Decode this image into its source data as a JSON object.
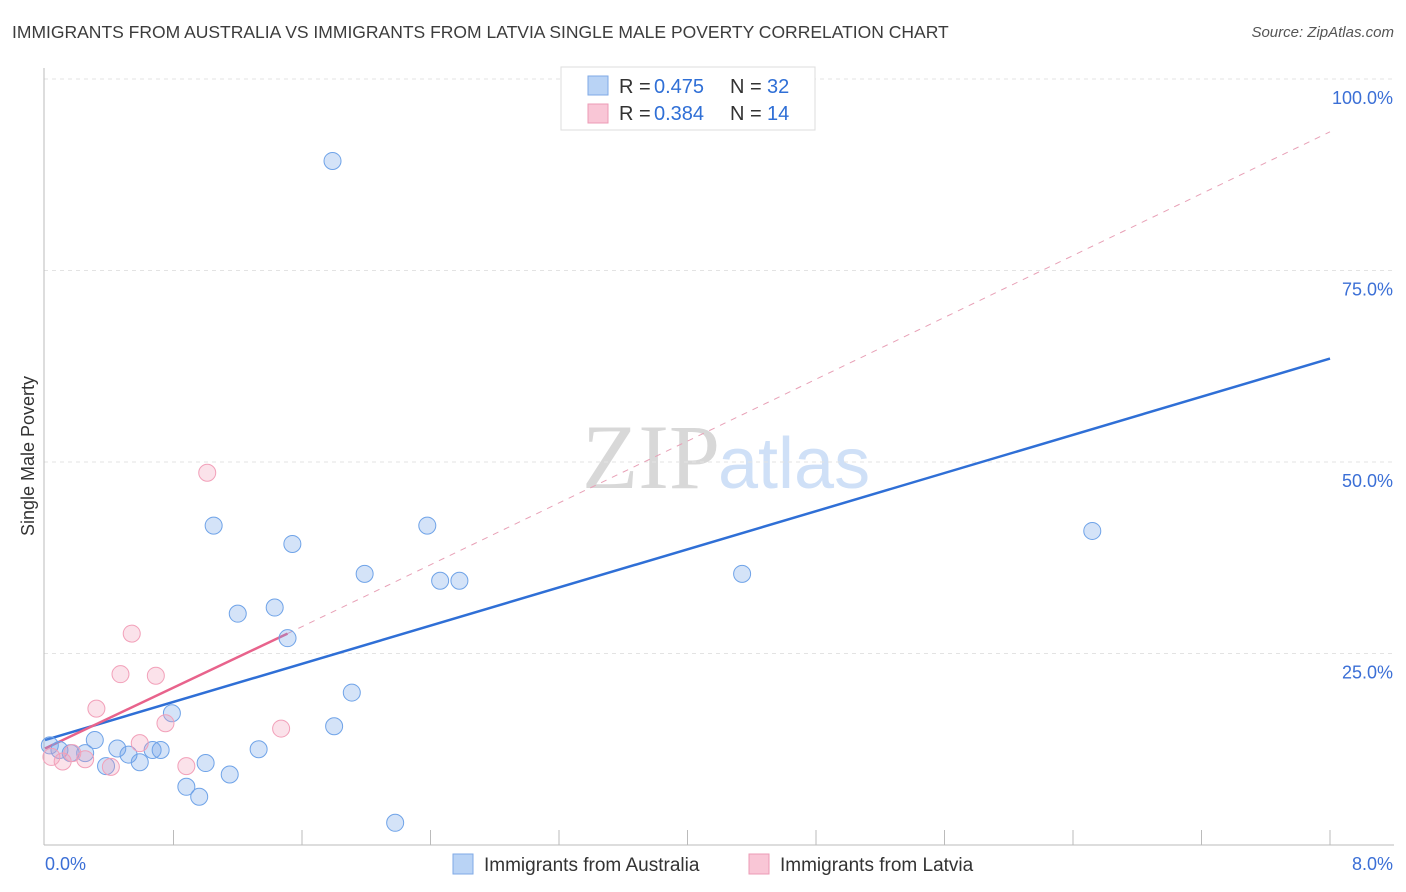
{
  "title": "IMMIGRANTS FROM AUSTRALIA VS IMMIGRANTS FROM LATVIA SINGLE MALE POVERTY CORRELATION CHART",
  "source": "Source: ZipAtlas.com",
  "watermark": "ZIPatlas",
  "colors": {
    "australia": "#6fa3e8",
    "latvia": "#f2a0b9",
    "australia_line": "#2f6fd6",
    "latvia_line": "#e8638c"
  },
  "legend": {
    "r_label": "R = ",
    "n_label": "N = ",
    "australia": {
      "r": "0.475",
      "n": "32"
    },
    "latvia": {
      "r": "0.384",
      "n": "14"
    }
  },
  "chart_data": {
    "type": "scatter",
    "title": "IMMIGRANTS FROM AUSTRALIA VS IMMIGRANTS FROM LATVIA SINGLE MALE POVERTY CORRELATION CHART",
    "xlabel": "",
    "ylabel": "Single Male Poverty",
    "xlim": [
      0,
      8
    ],
    "ylim": [
      0,
      100
    ],
    "x_tick_labels": [
      "0.0%",
      "8.0%"
    ],
    "y_tick_labels": [
      "100.0%",
      "75.0%",
      "50.0%",
      "25.0%"
    ],
    "y_ticks": [
      100,
      75,
      50,
      25
    ],
    "legend_position": "bottom",
    "series": [
      {
        "name": "Immigrants from Australia",
        "points": [
          [
            1.79,
            89.3
          ],
          [
            1.05,
            41.7
          ],
          [
            2.38,
            41.7
          ],
          [
            6.52,
            41.0
          ],
          [
            1.54,
            39.3
          ],
          [
            1.99,
            35.4
          ],
          [
            4.34,
            35.4
          ],
          [
            2.46,
            34.5
          ],
          [
            2.58,
            34.5
          ],
          [
            1.43,
            31.0
          ],
          [
            1.2,
            30.2
          ],
          [
            1.51,
            27.0
          ],
          [
            1.91,
            19.9
          ],
          [
            0.79,
            17.2
          ],
          [
            1.8,
            15.5
          ],
          [
            0.31,
            13.7
          ],
          [
            0.45,
            12.6
          ],
          [
            1.33,
            12.5
          ],
          [
            0.72,
            12.4
          ],
          [
            0.67,
            12.4
          ],
          [
            0.52,
            11.8
          ],
          [
            0.25,
            12.0
          ],
          [
            0.16,
            12.0
          ],
          [
            0.09,
            12.4
          ],
          [
            0.03,
            13.0
          ],
          [
            0.59,
            10.8
          ],
          [
            1.0,
            10.7
          ],
          [
            0.38,
            10.3
          ],
          [
            1.15,
            9.2
          ],
          [
            0.88,
            7.6
          ],
          [
            0.96,
            6.3
          ],
          [
            2.18,
            2.9
          ]
        ],
        "trend": {
          "x": [
            0,
            8
          ],
          "y": [
            13.7,
            63.5
          ]
        }
      },
      {
        "name": "Immigrants from Latvia",
        "points": [
          [
            1.01,
            48.6
          ],
          [
            0.54,
            27.6
          ],
          [
            0.47,
            22.3
          ],
          [
            0.69,
            22.1
          ],
          [
            0.32,
            17.8
          ],
          [
            0.75,
            15.9
          ],
          [
            1.47,
            15.2
          ],
          [
            0.59,
            13.3
          ],
          [
            0.88,
            10.3
          ],
          [
            0.41,
            10.2
          ],
          [
            0.25,
            11.2
          ],
          [
            0.11,
            10.9
          ],
          [
            0.04,
            11.5
          ],
          [
            0.17,
            12.0
          ]
        ],
        "trend": {
          "x": [
            0,
            1.51
          ],
          "y": [
            12.6,
            27.6
          ]
        },
        "trend_dashed": {
          "x": [
            1.51,
            8
          ],
          "y": [
            27.6,
            93.1
          ]
        }
      }
    ]
  }
}
